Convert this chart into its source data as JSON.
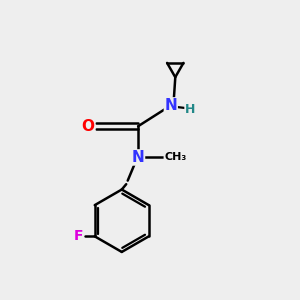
{
  "background_color": "#eeeeee",
  "atom_colors": {
    "C": "#000000",
    "N": "#3333ff",
    "O": "#ff0000",
    "F": "#dd00dd",
    "H": "#228888"
  },
  "bond_lw": 1.8,
  "figsize": [
    3.0,
    3.0
  ],
  "dpi": 100
}
